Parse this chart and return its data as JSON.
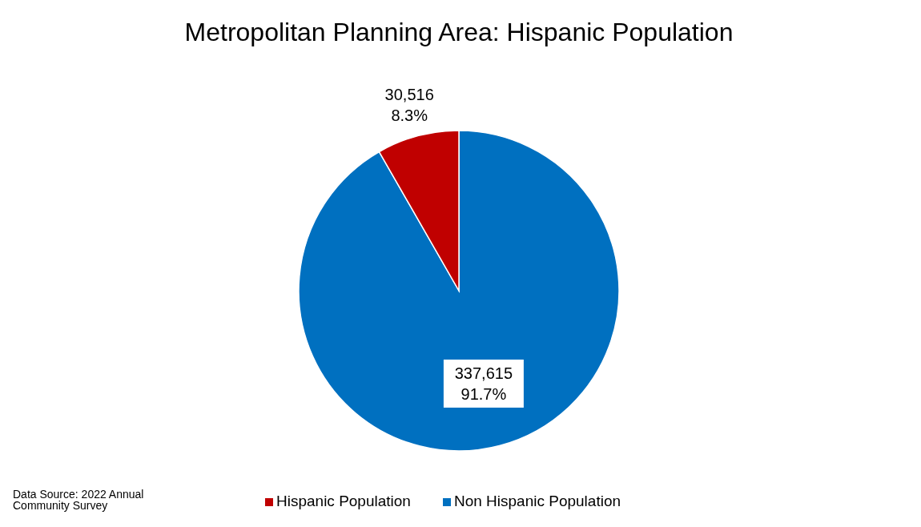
{
  "chart_data": {
    "type": "pie",
    "title": "Metropolitan Planning Area: Hispanic Population",
    "categories": [
      "Non Hispanic Population",
      "Hispanic Population"
    ],
    "values": [
      337615,
      30516
    ],
    "colors": [
      "#0070c0",
      "#c00000"
    ],
    "value_labels": [
      "337,615\n91.7%",
      "30,516\n8.3%"
    ],
    "legend": "bottom",
    "annotations": [
      "Data Source: 2022 Annual Community Survey"
    ]
  }
}
